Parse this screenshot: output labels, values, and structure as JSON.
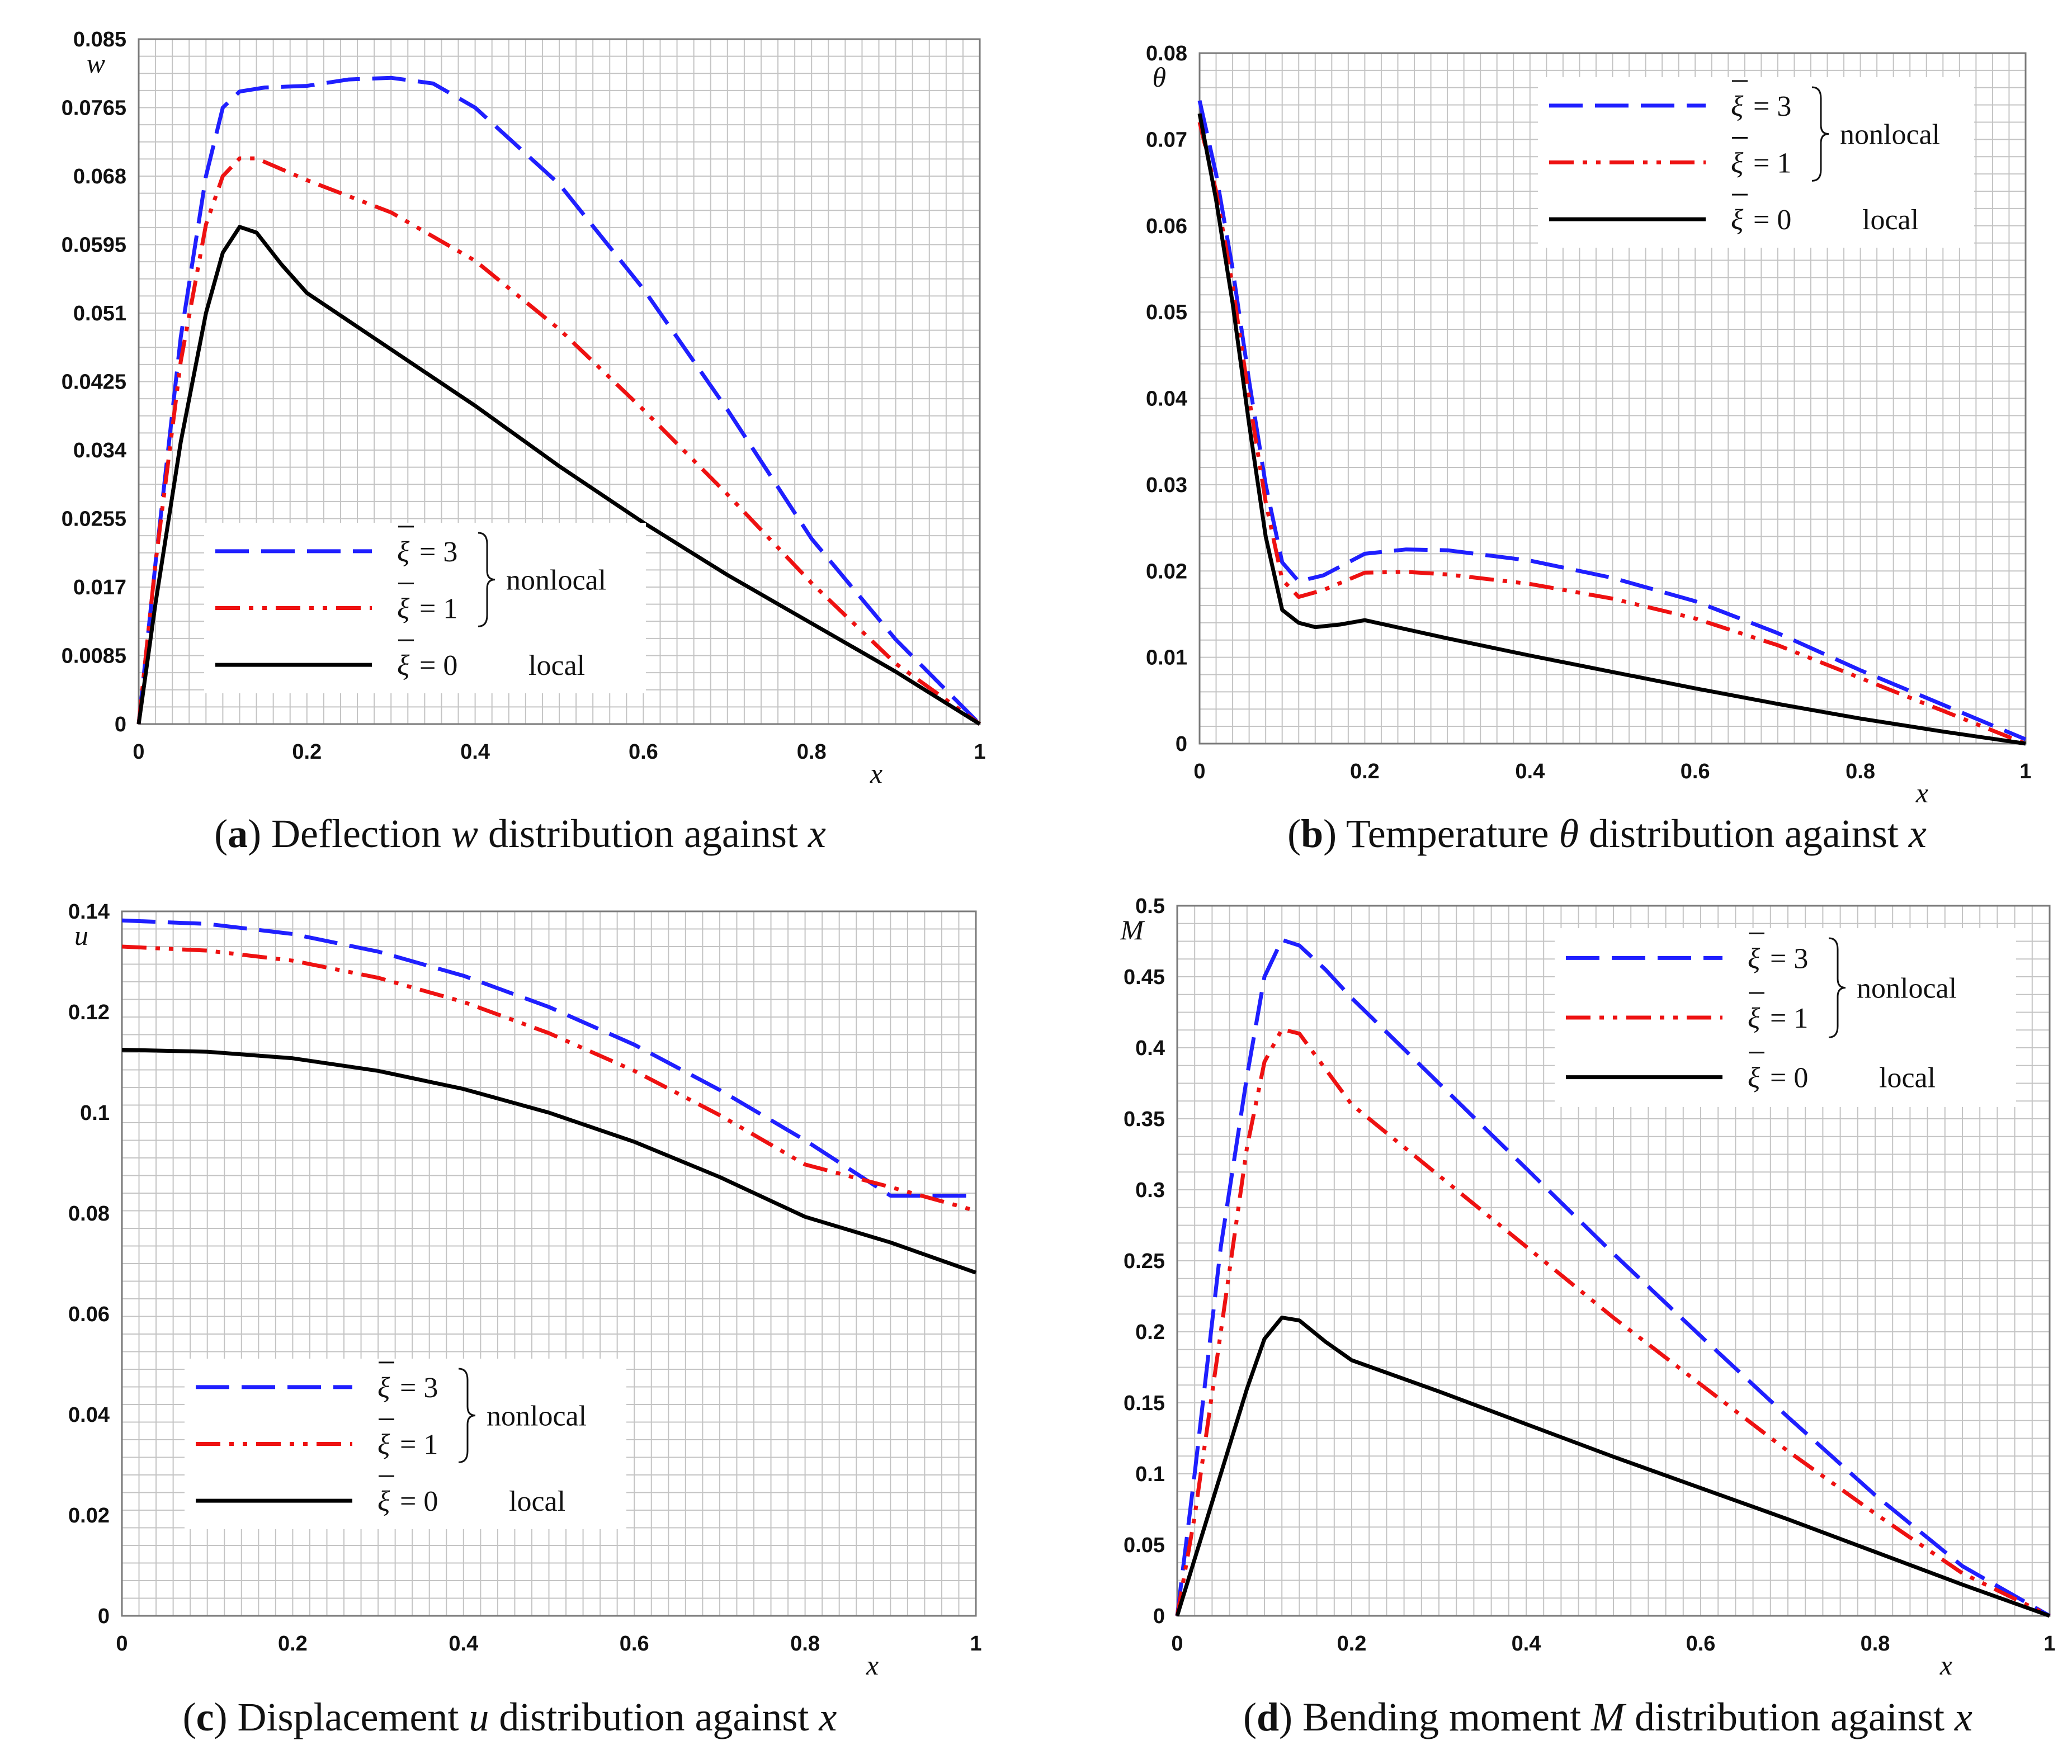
{
  "chart_data": [
    {
      "type": "line",
      "panel": "a",
      "caption_prefix": "a",
      "caption_text": "Deflection",
      "caption_var": "w",
      "caption_suffix": "distribution against",
      "caption_xvar": "x",
      "ylabel": "w",
      "xlabel": "x",
      "xlim": [
        0,
        1
      ],
      "ylim": [
        0,
        0.085
      ],
      "x_ticks": [
        "0",
        "0.2",
        "0.4",
        "0.6",
        "0.8",
        "1"
      ],
      "y_ticks": [
        "0",
        "0.0085",
        "0.017",
        "0.0255",
        "0.034",
        "0.0425",
        "0.051",
        "0.0595",
        "0.068",
        "0.0765",
        "0.085"
      ],
      "y_tick_values": [
        0,
        0.0085,
        0.017,
        0.0255,
        0.034,
        0.0425,
        0.051,
        0.0595,
        0.068,
        0.0765,
        0.085
      ],
      "grid": true,
      "legend_position": "bottom-left",
      "series": [
        {
          "name": "ξ̄ = 3",
          "color": "#1f1fff",
          "dash": "dashed",
          "points": [
            [
              0,
              0
            ],
            [
              0.02,
              0.02
            ],
            [
              0.05,
              0.048
            ],
            [
              0.08,
              0.068
            ],
            [
              0.1,
              0.0765
            ],
            [
              0.12,
              0.0785
            ],
            [
              0.15,
              0.079
            ],
            [
              0.2,
              0.0792
            ],
            [
              0.25,
              0.08
            ],
            [
              0.3,
              0.0802
            ],
            [
              0.35,
              0.0795
            ],
            [
              0.4,
              0.0765
            ],
            [
              0.5,
              0.067
            ],
            [
              0.6,
              0.054
            ],
            [
              0.7,
              0.039
            ],
            [
              0.8,
              0.023
            ],
            [
              0.9,
              0.0105
            ],
            [
              1,
              0
            ]
          ]
        },
        {
          "name": "ξ̄ = 1",
          "color": "#ee1111",
          "dash": "dash-dot-dot",
          "points": [
            [
              0,
              0
            ],
            [
              0.02,
              0.02
            ],
            [
              0.05,
              0.045
            ],
            [
              0.08,
              0.062
            ],
            [
              0.1,
              0.068
            ],
            [
              0.12,
              0.0702
            ],
            [
              0.14,
              0.0702
            ],
            [
              0.2,
              0.0675
            ],
            [
              0.3,
              0.0635
            ],
            [
              0.4,
              0.0575
            ],
            [
              0.5,
              0.049
            ],
            [
              0.6,
              0.039
            ],
            [
              0.7,
              0.0285
            ],
            [
              0.8,
              0.0175
            ],
            [
              0.9,
              0.0075
            ],
            [
              1,
              0
            ]
          ]
        },
        {
          "name": "ξ̄ = 0",
          "color": "#000000",
          "dash": "solid",
          "points": [
            [
              0,
              0
            ],
            [
              0.02,
              0.015
            ],
            [
              0.05,
              0.035
            ],
            [
              0.08,
              0.051
            ],
            [
              0.1,
              0.0585
            ],
            [
              0.12,
              0.0617
            ],
            [
              0.14,
              0.061
            ],
            [
              0.17,
              0.057
            ],
            [
              0.2,
              0.0535
            ],
            [
              0.3,
              0.0465
            ],
            [
              0.4,
              0.0395
            ],
            [
              0.5,
              0.032
            ],
            [
              0.6,
              0.025
            ],
            [
              0.7,
              0.0185
            ],
            [
              0.8,
              0.0125
            ],
            [
              0.9,
              0.0065
            ],
            [
              1,
              0
            ]
          ]
        }
      ]
    },
    {
      "type": "line",
      "panel": "b",
      "caption_prefix": "b",
      "caption_text": "Temperature",
      "caption_var": "θ",
      "caption_suffix": "distribution against",
      "caption_xvar": "x",
      "ylabel": "θ",
      "xlabel": "x",
      "xlim": [
        0,
        1
      ],
      "ylim": [
        0,
        0.08
      ],
      "x_ticks": [
        "0",
        "0.2",
        "0.4",
        "0.6",
        "0.8",
        "1"
      ],
      "y_ticks": [
        "0",
        "0.01",
        "0.02",
        "0.03",
        "0.04",
        "0.05",
        "0.06",
        "0.07",
        "0.08"
      ],
      "y_tick_values": [
        0,
        0.01,
        0.02,
        0.03,
        0.04,
        0.05,
        0.06,
        0.07,
        0.08
      ],
      "grid": true,
      "legend_position": "top-right",
      "series": [
        {
          "name": "ξ̄ = 3",
          "color": "#1f1fff",
          "dash": "dashed",
          "points": [
            [
              0,
              0.0745
            ],
            [
              0.02,
              0.066
            ],
            [
              0.04,
              0.055
            ],
            [
              0.06,
              0.042
            ],
            [
              0.08,
              0.03
            ],
            [
              0.1,
              0.021
            ],
            [
              0.12,
              0.0188
            ],
            [
              0.15,
              0.0195
            ],
            [
              0.2,
              0.022
            ],
            [
              0.25,
              0.0225
            ],
            [
              0.3,
              0.0224
            ],
            [
              0.4,
              0.0212
            ],
            [
              0.5,
              0.0192
            ],
            [
              0.6,
              0.0165
            ],
            [
              0.7,
              0.0128
            ],
            [
              0.8,
              0.0085
            ],
            [
              0.9,
              0.0045
            ],
            [
              1,
              0.0005
            ]
          ]
        },
        {
          "name": "ξ̄ = 1",
          "color": "#ee1111",
          "dash": "dash-dot-dot",
          "points": [
            [
              0,
              0.072
            ],
            [
              0.02,
              0.064
            ],
            [
              0.04,
              0.053
            ],
            [
              0.06,
              0.04
            ],
            [
              0.08,
              0.028
            ],
            [
              0.1,
              0.019
            ],
            [
              0.12,
              0.017
            ],
            [
              0.15,
              0.0178
            ],
            [
              0.2,
              0.0198
            ],
            [
              0.25,
              0.0199
            ],
            [
              0.3,
              0.0196
            ],
            [
              0.4,
              0.0185
            ],
            [
              0.5,
              0.0168
            ],
            [
              0.6,
              0.0145
            ],
            [
              0.7,
              0.0114
            ],
            [
              0.8,
              0.0076
            ],
            [
              0.9,
              0.0038
            ],
            [
              1,
              0
            ]
          ]
        },
        {
          "name": "ξ̄ = 0",
          "color": "#000000",
          "dash": "solid",
          "points": [
            [
              0,
              0.073
            ],
            [
              0.02,
              0.063
            ],
            [
              0.04,
              0.051
            ],
            [
              0.06,
              0.037
            ],
            [
              0.08,
              0.024
            ],
            [
              0.1,
              0.0155
            ],
            [
              0.12,
              0.014
            ],
            [
              0.14,
              0.0135
            ],
            [
              0.17,
              0.0138
            ],
            [
              0.2,
              0.0143
            ],
            [
              0.3,
              0.0122
            ],
            [
              0.4,
              0.0102
            ],
            [
              0.5,
              0.0083
            ],
            [
              0.6,
              0.0064
            ],
            [
              0.7,
              0.0046
            ],
            [
              0.8,
              0.0029
            ],
            [
              0.9,
              0.0014
            ],
            [
              1,
              0
            ]
          ]
        }
      ]
    },
    {
      "type": "line",
      "panel": "c",
      "caption_prefix": "c",
      "caption_text": "Displacement",
      "caption_var": "u",
      "caption_suffix": "distribution against",
      "caption_xvar": "x",
      "ylabel": "u",
      "xlabel": "x",
      "xlim": [
        0,
        1
      ],
      "ylim": [
        0,
        0.14
      ],
      "x_ticks": [
        "0",
        "0.2",
        "0.4",
        "0.6",
        "0.8",
        "1"
      ],
      "y_ticks": [
        "0",
        "0.02",
        "0.04",
        "0.06",
        "0.08",
        "0.1",
        "0.12",
        "0.14"
      ],
      "y_tick_values": [
        0,
        0.02,
        0.04,
        0.06,
        0.08,
        0.1,
        0.12,
        0.14
      ],
      "grid": true,
      "legend_position": "bottom-left",
      "series": [
        {
          "name": "ξ̄ = 3",
          "color": "#1f1fff",
          "dash": "dashed",
          "points": [
            [
              0,
              0.1382
            ],
            [
              0.1,
              0.1375
            ],
            [
              0.2,
              0.1355
            ],
            [
              0.3,
              0.132
            ],
            [
              0.4,
              0.1272
            ],
            [
              0.5,
              0.121
            ],
            [
              0.6,
              0.1135
            ],
            [
              0.7,
              0.1045
            ],
            [
              0.8,
              0.0945
            ],
            [
              0.9,
              0.0835
            ],
            [
              1,
              0.0835
            ]
          ]
        },
        {
          "name": "ξ̄ = 1",
          "color": "#ee1111",
          "dash": "dash-dot-dot",
          "points": [
            [
              0,
              0.133
            ],
            [
              0.1,
              0.1322
            ],
            [
              0.2,
              0.1302
            ],
            [
              0.3,
              0.1268
            ],
            [
              0.4,
              0.122
            ],
            [
              0.5,
              0.1158
            ],
            [
              0.6,
              0.1083
            ],
            [
              0.7,
              0.0995
            ],
            [
              0.8,
              0.0897
            ],
            [
              0.9,
              0.0852
            ],
            [
              1,
              0.0805
            ]
          ]
        },
        {
          "name": "ξ̄ = 0",
          "color": "#000000",
          "dash": "solid",
          "points": [
            [
              0,
              0.1125
            ],
            [
              0.1,
              0.1121
            ],
            [
              0.2,
              0.1108
            ],
            [
              0.3,
              0.1083
            ],
            [
              0.4,
              0.1047
            ],
            [
              0.5,
              0.1
            ],
            [
              0.6,
              0.0942
            ],
            [
              0.7,
              0.0872
            ],
            [
              0.8,
              0.0793
            ],
            [
              0.9,
              0.0742
            ],
            [
              1,
              0.0682
            ]
          ]
        }
      ]
    },
    {
      "type": "line",
      "panel": "d",
      "caption_prefix": "d",
      "caption_text": "Bending moment",
      "caption_var": "M",
      "caption_suffix": "distribution against",
      "caption_xvar": "x",
      "ylabel": "M",
      "xlabel": "x",
      "xlim": [
        0,
        1
      ],
      "ylim": [
        0,
        0.5
      ],
      "x_ticks": [
        "0",
        "0.2",
        "0.4",
        "0.6",
        "0.8",
        "1"
      ],
      "y_ticks": [
        "0",
        "0.05",
        "0.1",
        "0.15",
        "0.2",
        "0.25",
        "0.3",
        "0.35",
        "0.4",
        "0.45",
        "0.5"
      ],
      "y_tick_values": [
        0,
        0.05,
        0.1,
        0.15,
        0.2,
        0.25,
        0.3,
        0.35,
        0.4,
        0.45,
        0.5
      ],
      "grid": true,
      "legend_position": "top-right",
      "series": [
        {
          "name": "ξ̄ = 3",
          "color": "#1f1fff",
          "dash": "dashed",
          "points": [
            [
              0,
              0
            ],
            [
              0.02,
              0.1
            ],
            [
              0.05,
              0.26
            ],
            [
              0.08,
              0.38
            ],
            [
              0.1,
              0.45
            ],
            [
              0.12,
              0.476
            ],
            [
              0.14,
              0.472
            ],
            [
              0.17,
              0.455
            ],
            [
              0.2,
              0.435
            ],
            [
              0.3,
              0.375
            ],
            [
              0.4,
              0.315
            ],
            [
              0.5,
              0.255
            ],
            [
              0.6,
              0.197
            ],
            [
              0.7,
              0.14
            ],
            [
              0.8,
              0.085
            ],
            [
              0.9,
              0.035
            ],
            [
              1,
              0
            ]
          ]
        },
        {
          "name": "ξ̄ = 1",
          "color": "#ee1111",
          "dash": "dash-dot-dot",
          "points": [
            [
              0,
              0
            ],
            [
              0.02,
              0.07
            ],
            [
              0.05,
              0.2
            ],
            [
              0.08,
              0.33
            ],
            [
              0.1,
              0.39
            ],
            [
              0.12,
              0.413
            ],
            [
              0.14,
              0.41
            ],
            [
              0.17,
              0.385
            ],
            [
              0.2,
              0.36
            ],
            [
              0.3,
              0.31
            ],
            [
              0.4,
              0.26
            ],
            [
              0.5,
              0.21
            ],
            [
              0.6,
              0.163
            ],
            [
              0.7,
              0.116
            ],
            [
              0.8,
              0.072
            ],
            [
              0.9,
              0.03
            ],
            [
              1,
              0
            ]
          ]
        },
        {
          "name": "ξ̄ = 0",
          "color": "#000000",
          "dash": "solid",
          "points": [
            [
              0,
              0
            ],
            [
              0.02,
              0.04
            ],
            [
              0.05,
              0.1
            ],
            [
              0.08,
              0.16
            ],
            [
              0.1,
              0.195
            ],
            [
              0.12,
              0.21
            ],
            [
              0.14,
              0.208
            ],
            [
              0.17,
              0.193
            ],
            [
              0.2,
              0.18
            ],
            [
              0.3,
              0.158
            ],
            [
              0.4,
              0.135
            ],
            [
              0.5,
              0.112
            ],
            [
              0.6,
              0.09
            ],
            [
              0.7,
              0.068
            ],
            [
              0.8,
              0.045
            ],
            [
              0.9,
              0.022
            ],
            [
              1,
              0
            ]
          ]
        }
      ]
    }
  ],
  "legend": {
    "entries": [
      {
        "sym": "ξ",
        "rhs": "= 3"
      },
      {
        "sym": "ξ",
        "rhs": "= 1"
      },
      {
        "sym": "ξ",
        "rhs": "= 0"
      }
    ],
    "group_nonlocal": "nonlocal",
    "group_local": "local"
  }
}
